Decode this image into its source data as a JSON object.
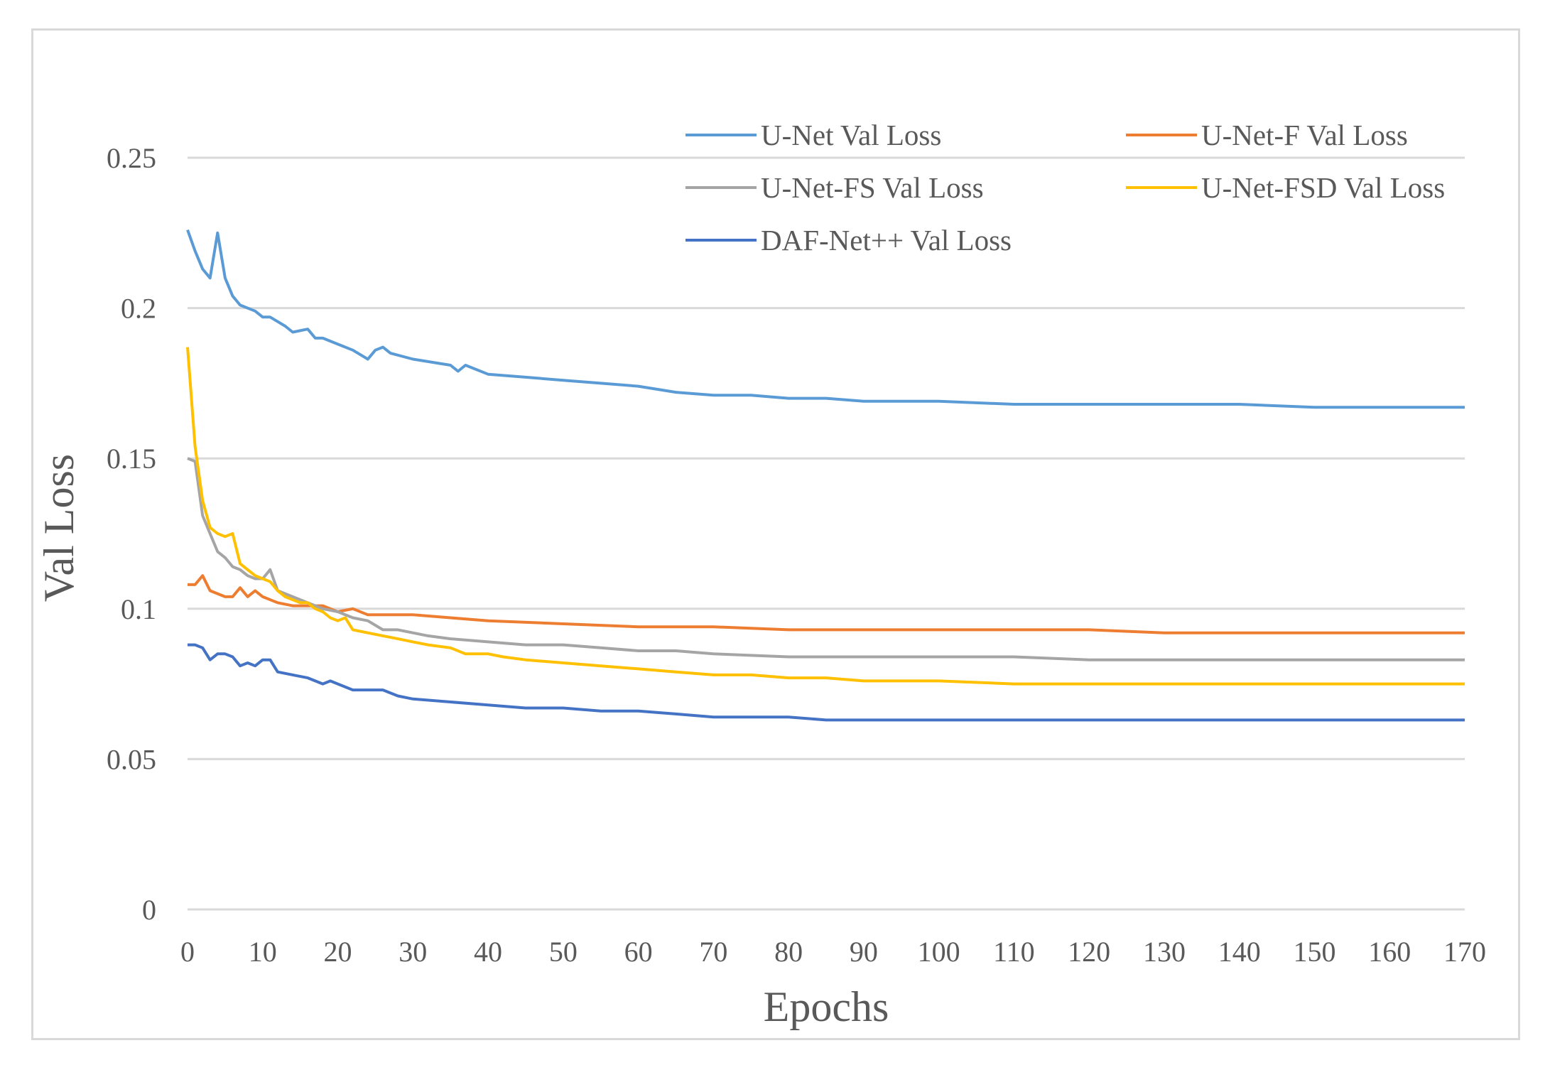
{
  "chart_data": {
    "type": "line",
    "title": "",
    "xlabel": "Epochs",
    "ylabel": "Val Loss",
    "xlim": [
      0,
      170
    ],
    "ylim": [
      0,
      0.25
    ],
    "xticks": [
      0,
      10,
      20,
      30,
      40,
      50,
      60,
      70,
      80,
      90,
      100,
      110,
      120,
      130,
      140,
      150,
      160,
      170
    ],
    "yticks": [
      0,
      0.05,
      0.1,
      0.15,
      0.2,
      0.25
    ],
    "ytick_labels": [
      "0",
      "0.05",
      "0.1",
      "0.15",
      "0.2",
      "0.25"
    ],
    "grid": true,
    "legend_position": "top-right",
    "series": [
      {
        "name": "U-Net Val Loss",
        "color": "#5b9bd5",
        "points": [
          [
            0,
            0.226
          ],
          [
            1,
            0.219
          ],
          [
            2,
            0.213
          ],
          [
            3,
            0.21
          ],
          [
            4,
            0.225
          ],
          [
            5,
            0.21
          ],
          [
            6,
            0.204
          ],
          [
            7,
            0.201
          ],
          [
            9,
            0.199
          ],
          [
            10,
            0.197
          ],
          [
            11,
            0.197
          ],
          [
            13,
            0.194
          ],
          [
            14,
            0.192
          ],
          [
            16,
            0.193
          ],
          [
            17,
            0.19
          ],
          [
            18,
            0.19
          ],
          [
            20,
            0.188
          ],
          [
            22,
            0.186
          ],
          [
            24,
            0.183
          ],
          [
            25,
            0.186
          ],
          [
            26,
            0.187
          ],
          [
            27,
            0.185
          ],
          [
            30,
            0.183
          ],
          [
            35,
            0.181
          ],
          [
            36,
            0.179
          ],
          [
            37,
            0.181
          ],
          [
            40,
            0.178
          ],
          [
            45,
            0.177
          ],
          [
            50,
            0.176
          ],
          [
            55,
            0.175
          ],
          [
            60,
            0.174
          ],
          [
            65,
            0.172
          ],
          [
            70,
            0.171
          ],
          [
            75,
            0.171
          ],
          [
            80,
            0.17
          ],
          [
            85,
            0.17
          ],
          [
            90,
            0.169
          ],
          [
            100,
            0.169
          ],
          [
            110,
            0.168
          ],
          [
            120,
            0.168
          ],
          [
            130,
            0.168
          ],
          [
            140,
            0.168
          ],
          [
            150,
            0.167
          ],
          [
            160,
            0.167
          ],
          [
            170,
            0.167
          ]
        ]
      },
      {
        "name": "U-Net-F Val Loss",
        "color": "#ed7d31",
        "points": [
          [
            0,
            0.108
          ],
          [
            1,
            0.108
          ],
          [
            2,
            0.111
          ],
          [
            3,
            0.106
          ],
          [
            4,
            0.105
          ],
          [
            5,
            0.104
          ],
          [
            6,
            0.104
          ],
          [
            7,
            0.107
          ],
          [
            8,
            0.104
          ],
          [
            9,
            0.106
          ],
          [
            10,
            0.104
          ],
          [
            12,
            0.102
          ],
          [
            14,
            0.101
          ],
          [
            16,
            0.101
          ],
          [
            18,
            0.101
          ],
          [
            20,
            0.099
          ],
          [
            22,
            0.1
          ],
          [
            24,
            0.098
          ],
          [
            30,
            0.098
          ],
          [
            35,
            0.097
          ],
          [
            40,
            0.096
          ],
          [
            50,
            0.095
          ],
          [
            60,
            0.094
          ],
          [
            70,
            0.094
          ],
          [
            80,
            0.093
          ],
          [
            90,
            0.093
          ],
          [
            100,
            0.093
          ],
          [
            110,
            0.093
          ],
          [
            120,
            0.093
          ],
          [
            130,
            0.092
          ],
          [
            140,
            0.092
          ],
          [
            150,
            0.092
          ],
          [
            160,
            0.092
          ],
          [
            170,
            0.092
          ]
        ]
      },
      {
        "name": "U-Net-FS Val Loss",
        "color": "#a5a5a5",
        "points": [
          [
            0,
            0.15
          ],
          [
            1,
            0.149
          ],
          [
            2,
            0.131
          ],
          [
            3,
            0.125
          ],
          [
            4,
            0.119
          ],
          [
            5,
            0.117
          ],
          [
            6,
            0.114
          ],
          [
            7,
            0.113
          ],
          [
            8,
            0.111
          ],
          [
            9,
            0.11
          ],
          [
            10,
            0.11
          ],
          [
            11,
            0.113
          ],
          [
            12,
            0.106
          ],
          [
            14,
            0.104
          ],
          [
            16,
            0.102
          ],
          [
            18,
            0.1
          ],
          [
            20,
            0.099
          ],
          [
            22,
            0.097
          ],
          [
            24,
            0.096
          ],
          [
            26,
            0.093
          ],
          [
            28,
            0.093
          ],
          [
            30,
            0.092
          ],
          [
            32,
            0.091
          ],
          [
            35,
            0.09
          ],
          [
            40,
            0.089
          ],
          [
            45,
            0.088
          ],
          [
            50,
            0.088
          ],
          [
            55,
            0.087
          ],
          [
            60,
            0.086
          ],
          [
            65,
            0.086
          ],
          [
            70,
            0.085
          ],
          [
            80,
            0.084
          ],
          [
            90,
            0.084
          ],
          [
            100,
            0.084
          ],
          [
            110,
            0.084
          ],
          [
            120,
            0.083
          ],
          [
            130,
            0.083
          ],
          [
            140,
            0.083
          ],
          [
            150,
            0.083
          ],
          [
            160,
            0.083
          ],
          [
            170,
            0.083
          ]
        ]
      },
      {
        "name": "U-Net-FSD Val Loss",
        "color": "#ffc000",
        "points": [
          [
            0,
            0.187
          ],
          [
            1,
            0.154
          ],
          [
            2,
            0.136
          ],
          [
            3,
            0.127
          ],
          [
            4,
            0.125
          ],
          [
            5,
            0.124
          ],
          [
            6,
            0.125
          ],
          [
            7,
            0.115
          ],
          [
            8,
            0.113
          ],
          [
            9,
            0.111
          ],
          [
            10,
            0.11
          ],
          [
            11,
            0.109
          ],
          [
            12,
            0.106
          ],
          [
            13,
            0.104
          ],
          [
            14,
            0.103
          ],
          [
            15,
            0.102
          ],
          [
            16,
            0.102
          ],
          [
            17,
            0.1
          ],
          [
            18,
            0.099
          ],
          [
            19,
            0.097
          ],
          [
            20,
            0.096
          ],
          [
            21,
            0.097
          ],
          [
            22,
            0.093
          ],
          [
            24,
            0.092
          ],
          [
            26,
            0.091
          ],
          [
            28,
            0.09
          ],
          [
            30,
            0.089
          ],
          [
            32,
            0.088
          ],
          [
            35,
            0.087
          ],
          [
            37,
            0.085
          ],
          [
            40,
            0.085
          ],
          [
            42,
            0.084
          ],
          [
            45,
            0.083
          ],
          [
            50,
            0.082
          ],
          [
            55,
            0.081
          ],
          [
            60,
            0.08
          ],
          [
            65,
            0.079
          ],
          [
            70,
            0.078
          ],
          [
            75,
            0.078
          ],
          [
            80,
            0.077
          ],
          [
            85,
            0.077
          ],
          [
            90,
            0.076
          ],
          [
            100,
            0.076
          ],
          [
            110,
            0.075
          ],
          [
            120,
            0.075
          ],
          [
            130,
            0.075
          ],
          [
            140,
            0.075
          ],
          [
            150,
            0.075
          ],
          [
            160,
            0.075
          ],
          [
            170,
            0.075
          ]
        ]
      },
      {
        "name": "DAF-Net++ Val Loss",
        "color": "#4472c4",
        "points": [
          [
            0,
            0.088
          ],
          [
            1,
            0.088
          ],
          [
            2,
            0.087
          ],
          [
            3,
            0.083
          ],
          [
            4,
            0.085
          ],
          [
            5,
            0.085
          ],
          [
            6,
            0.084
          ],
          [
            7,
            0.081
          ],
          [
            8,
            0.082
          ],
          [
            9,
            0.081
          ],
          [
            10,
            0.083
          ],
          [
            11,
            0.083
          ],
          [
            12,
            0.079
          ],
          [
            14,
            0.078
          ],
          [
            16,
            0.077
          ],
          [
            17,
            0.076
          ],
          [
            18,
            0.075
          ],
          [
            19,
            0.076
          ],
          [
            20,
            0.075
          ],
          [
            22,
            0.073
          ],
          [
            24,
            0.073
          ],
          [
            26,
            0.073
          ],
          [
            28,
            0.071
          ],
          [
            30,
            0.07
          ],
          [
            35,
            0.069
          ],
          [
            40,
            0.068
          ],
          [
            45,
            0.067
          ],
          [
            50,
            0.067
          ],
          [
            55,
            0.066
          ],
          [
            60,
            0.066
          ],
          [
            65,
            0.065
          ],
          [
            70,
            0.064
          ],
          [
            75,
            0.064
          ],
          [
            80,
            0.064
          ],
          [
            85,
            0.063
          ],
          [
            90,
            0.063
          ],
          [
            100,
            0.063
          ],
          [
            110,
            0.063
          ],
          [
            120,
            0.063
          ],
          [
            130,
            0.063
          ],
          [
            140,
            0.063
          ],
          [
            150,
            0.063
          ],
          [
            160,
            0.063
          ],
          [
            170,
            0.063
          ]
        ]
      }
    ]
  }
}
